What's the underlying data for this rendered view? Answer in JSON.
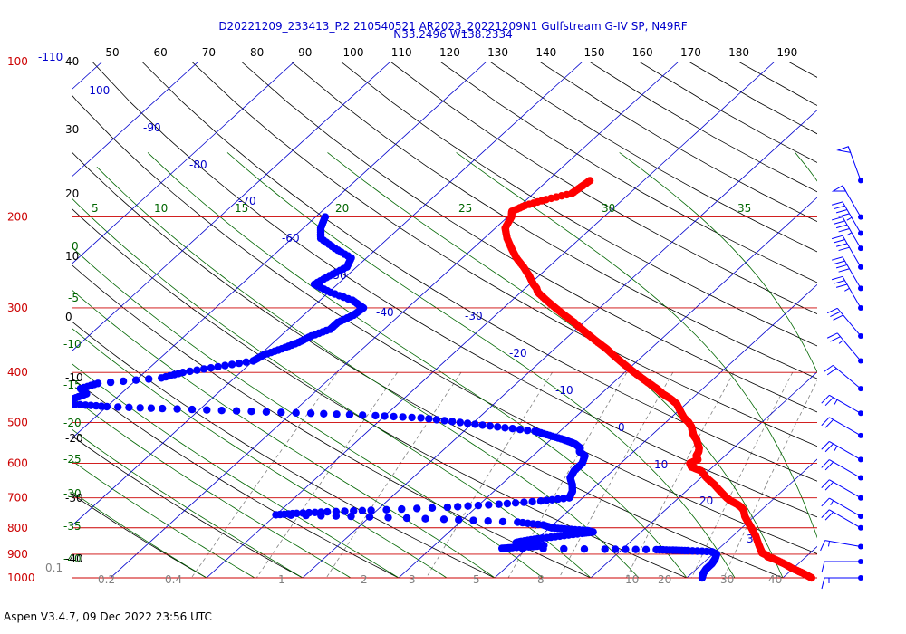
{
  "header": {
    "title_line1": "D20221209_233413_P.2 210540521 AR2023_20221209N1 Gulfstream G-IV SP, N49RF",
    "title_line2": "N33.2496 W138.2334"
  },
  "footer": {
    "text": "Aspen V3.4.7, 09 Dec 2022  23:56 UTC"
  },
  "colors": {
    "temperature": "#ff0000",
    "dewpoint": "#0000ff",
    "isobar": "#cc0000",
    "isotherm": "#0000cc",
    "dry_adiabat": "#000000",
    "moist_adiabat": "#006600",
    "mixing_ratio": "#808080",
    "wind_barb": "#0000ff"
  },
  "chart_data": {
    "type": "scatter",
    "subtype": "skew-T log-P diagram",
    "pressure_axis": {
      "scale": "log",
      "range_hpa": [
        1000,
        100
      ]
    },
    "isobars_hpa": [
      100,
      200,
      300,
      400,
      500,
      600,
      700,
      800,
      900,
      1000
    ],
    "pressure_labels": [
      "100",
      "200",
      "300",
      "400",
      "500",
      "600",
      "700",
      "800",
      "900",
      "1000"
    ],
    "top_scale_labels": [
      "50",
      "60",
      "70",
      "80",
      "90",
      "100",
      "110",
      "120",
      "130",
      "140",
      "150",
      "160",
      "170",
      "180",
      "190"
    ],
    "isotherm_labels": [
      "-110",
      "-100",
      "-90",
      "-80",
      "-70",
      "-60",
      "-50",
      "-40",
      "-30",
      "-20",
      "-10",
      "0",
      "10",
      "20",
      "30"
    ],
    "moist_adiabat_labels": [
      "5",
      "10",
      "15",
      "20",
      "25",
      "30",
      "35"
    ],
    "moist_adiabat_left_labels": [
      "0",
      "-5",
      "-10",
      "-15",
      "-20",
      "-25",
      "-30",
      "-35",
      "-40"
    ],
    "dry_adiabat_left_labels": [
      "40",
      "30",
      "20",
      "10",
      "0",
      "-10",
      "-20",
      "-30",
      "-40"
    ],
    "mixing_ratio_labels": [
      "0.1",
      "0.2",
      "0.4",
      "1",
      "2",
      "3",
      "5",
      "8",
      "10",
      "20",
      "30",
      "40"
    ],
    "series": [
      {
        "name": "temperature",
        "points": [
          [
            170,
            -45.6
          ],
          [
            175,
            -45.8
          ],
          [
            180,
            -46.0
          ],
          [
            185,
            -48.0
          ],
          [
            190,
            -49.5
          ],
          [
            195,
            -50.2
          ],
          [
            200,
            -49.6
          ],
          [
            210,
            -49.0
          ],
          [
            220,
            -47.6
          ],
          [
            230,
            -46.0
          ],
          [
            240,
            -44.4
          ],
          [
            250,
            -42.6
          ],
          [
            260,
            -41.0
          ],
          [
            270,
            -39.6
          ],
          [
            275,
            -38.8
          ],
          [
            280,
            -38.2
          ],
          [
            290,
            -36.4
          ],
          [
            300,
            -34.6
          ],
          [
            310,
            -32.8
          ],
          [
            320,
            -31.0
          ],
          [
            330,
            -29.4
          ],
          [
            340,
            -27.8
          ],
          [
            350,
            -26.2
          ],
          [
            360,
            -24.6
          ],
          [
            370,
            -23.2
          ],
          [
            380,
            -21.8
          ],
          [
            390,
            -20.4
          ],
          [
            400,
            -19.0
          ],
          [
            410,
            -17.6
          ],
          [
            420,
            -16.2
          ],
          [
            430,
            -14.8
          ],
          [
            440,
            -13.6
          ],
          [
            450,
            -12.2
          ],
          [
            460,
            -11.0
          ],
          [
            470,
            -10.2
          ],
          [
            480,
            -9.4
          ],
          [
            490,
            -8.6
          ],
          [
            500,
            -7.6
          ],
          [
            510,
            -6.8
          ],
          [
            520,
            -6.2
          ],
          [
            530,
            -5.6
          ],
          [
            540,
            -4.8
          ],
          [
            550,
            -4.2
          ],
          [
            560,
            -3.6
          ],
          [
            570,
            -3.2
          ],
          [
            580,
            -3.0
          ],
          [
            590,
            -2.4
          ],
          [
            600,
            -2.8
          ],
          [
            610,
            -2.2
          ],
          [
            620,
            -0.8
          ],
          [
            640,
            0.6
          ],
          [
            660,
            2.2
          ],
          [
            680,
            3.6
          ],
          [
            700,
            5.0
          ],
          [
            710,
            5.8
          ],
          [
            720,
            6.8
          ],
          [
            730,
            7.6
          ],
          [
            740,
            8.2
          ],
          [
            760,
            9.0
          ],
          [
            780,
            10.0
          ],
          [
            800,
            11.0
          ],
          [
            830,
            12.4
          ],
          [
            860,
            13.6
          ],
          [
            880,
            14.4
          ],
          [
            890,
            14.8
          ],
          [
            895,
            15.0
          ],
          [
            905,
            15.8
          ],
          [
            910,
            16.0
          ],
          [
            920,
            17.0
          ],
          [
            940,
            18.6
          ],
          [
            960,
            20.0
          ],
          [
            980,
            21.6
          ],
          [
            1000,
            23.0
          ]
        ]
      },
      {
        "name": "dewpoint",
        "points": [
          [
            200,
            -69.0
          ],
          [
            210,
            -68.2
          ],
          [
            220,
            -67.0
          ],
          [
            230,
            -64.4
          ],
          [
            240,
            -61.6
          ],
          [
            250,
            -61.0
          ],
          [
            260,
            -61.8
          ],
          [
            270,
            -62.4
          ],
          [
            280,
            -59.8
          ],
          [
            290,
            -56.6
          ],
          [
            300,
            -54.6
          ],
          [
            310,
            -54.8
          ],
          [
            320,
            -55.6
          ],
          [
            330,
            -55.6
          ],
          [
            340,
            -56.8
          ],
          [
            350,
            -57.4
          ],
          [
            360,
            -58.4
          ],
          [
            370,
            -59.6
          ],
          [
            380,
            -60.0
          ],
          [
            390,
            -63.0
          ],
          [
            400,
            -66.0
          ],
          [
            410,
            -67.6
          ],
          [
            420,
            -73.6
          ],
          [
            430,
            -74.8
          ],
          [
            440,
            -73.6
          ],
          [
            450,
            -74.4
          ],
          [
            460,
            -76.0
          ],
          [
            462,
            -73.0
          ],
          [
            466,
            -70.0
          ],
          [
            470,
            -64.0
          ],
          [
            475,
            -56.0
          ],
          [
            480,
            -48.0
          ],
          [
            485,
            -41.0
          ],
          [
            490,
            -36.0
          ],
          [
            500,
            -31.4
          ],
          [
            510,
            -27.0
          ],
          [
            520,
            -22.6
          ],
          [
            530,
            -20.6
          ],
          [
            540,
            -18.6
          ],
          [
            550,
            -17.0
          ],
          [
            560,
            -16.0
          ],
          [
            570,
            -15.6
          ],
          [
            580,
            -14.6
          ],
          [
            600,
            -14.0
          ],
          [
            620,
            -14.0
          ],
          [
            640,
            -13.6
          ],
          [
            660,
            -12.6
          ],
          [
            680,
            -11.8
          ],
          [
            700,
            -11.4
          ],
          [
            710,
            -14.0
          ],
          [
            720,
            -18.0
          ],
          [
            730,
            -23.0
          ],
          [
            740,
            -30.6
          ],
          [
            745,
            -35.0
          ],
          [
            750,
            -38.0
          ],
          [
            755,
            -40.0
          ],
          [
            760,
            -32.0
          ],
          [
            770,
            -22.0
          ],
          [
            780,
            -14.0
          ],
          [
            790,
            -11.0
          ],
          [
            800,
            -9.8
          ],
          [
            805,
            -8.0
          ],
          [
            810,
            -5.8
          ],
          [
            815,
            -5.0
          ],
          [
            820,
            -6.0
          ],
          [
            830,
            -8.0
          ],
          [
            840,
            -10.0
          ],
          [
            850,
            -11.4
          ],
          [
            855,
            -11.8
          ],
          [
            860,
            -11.0
          ],
          [
            865,
            -8.6
          ],
          [
            870,
            -9.6
          ],
          [
            874,
            -11.6
          ],
          [
            877,
            -12.6
          ],
          [
            880,
            -1.8
          ],
          [
            882,
            3.6
          ],
          [
            884,
            5.4
          ],
          [
            886,
            7.0
          ],
          [
            890,
            9.6
          ],
          [
            900,
            10.4
          ],
          [
            920,
            10.8
          ],
          [
            940,
            11.0
          ],
          [
            960,
            11.0
          ],
          [
            980,
            11.2
          ],
          [
            1000,
            11.6
          ]
        ]
      }
    ],
    "wind_barbs": [
      {
        "p": 170,
        "speed": 50,
        "dir": 340
      },
      {
        "p": 200,
        "speed": 50,
        "dir": 330
      },
      {
        "p": 215,
        "speed": 45,
        "dir": 330
      },
      {
        "p": 230,
        "speed": 45,
        "dir": 330
      },
      {
        "p": 250,
        "speed": 40,
        "dir": 330
      },
      {
        "p": 275,
        "speed": 40,
        "dir": 330
      },
      {
        "p": 300,
        "speed": 35,
        "dir": 330
      },
      {
        "p": 340,
        "speed": 30,
        "dir": 320
      },
      {
        "p": 380,
        "speed": 25,
        "dir": 320
      },
      {
        "p": 430,
        "speed": 20,
        "dir": 310
      },
      {
        "p": 480,
        "speed": 25,
        "dir": 300
      },
      {
        "p": 530,
        "speed": 20,
        "dir": 300
      },
      {
        "p": 590,
        "speed": 25,
        "dir": 300
      },
      {
        "p": 640,
        "speed": 20,
        "dir": 300
      },
      {
        "p": 700,
        "speed": 20,
        "dir": 300
      },
      {
        "p": 760,
        "speed": 15,
        "dir": 300
      },
      {
        "p": 800,
        "speed": 20,
        "dir": 300
      },
      {
        "p": 870,
        "speed": 15,
        "dir": 280
      },
      {
        "p": 930,
        "speed": 10,
        "dir": 270
      },
      {
        "p": 1000,
        "speed": 15,
        "dir": 270
      }
    ]
  }
}
